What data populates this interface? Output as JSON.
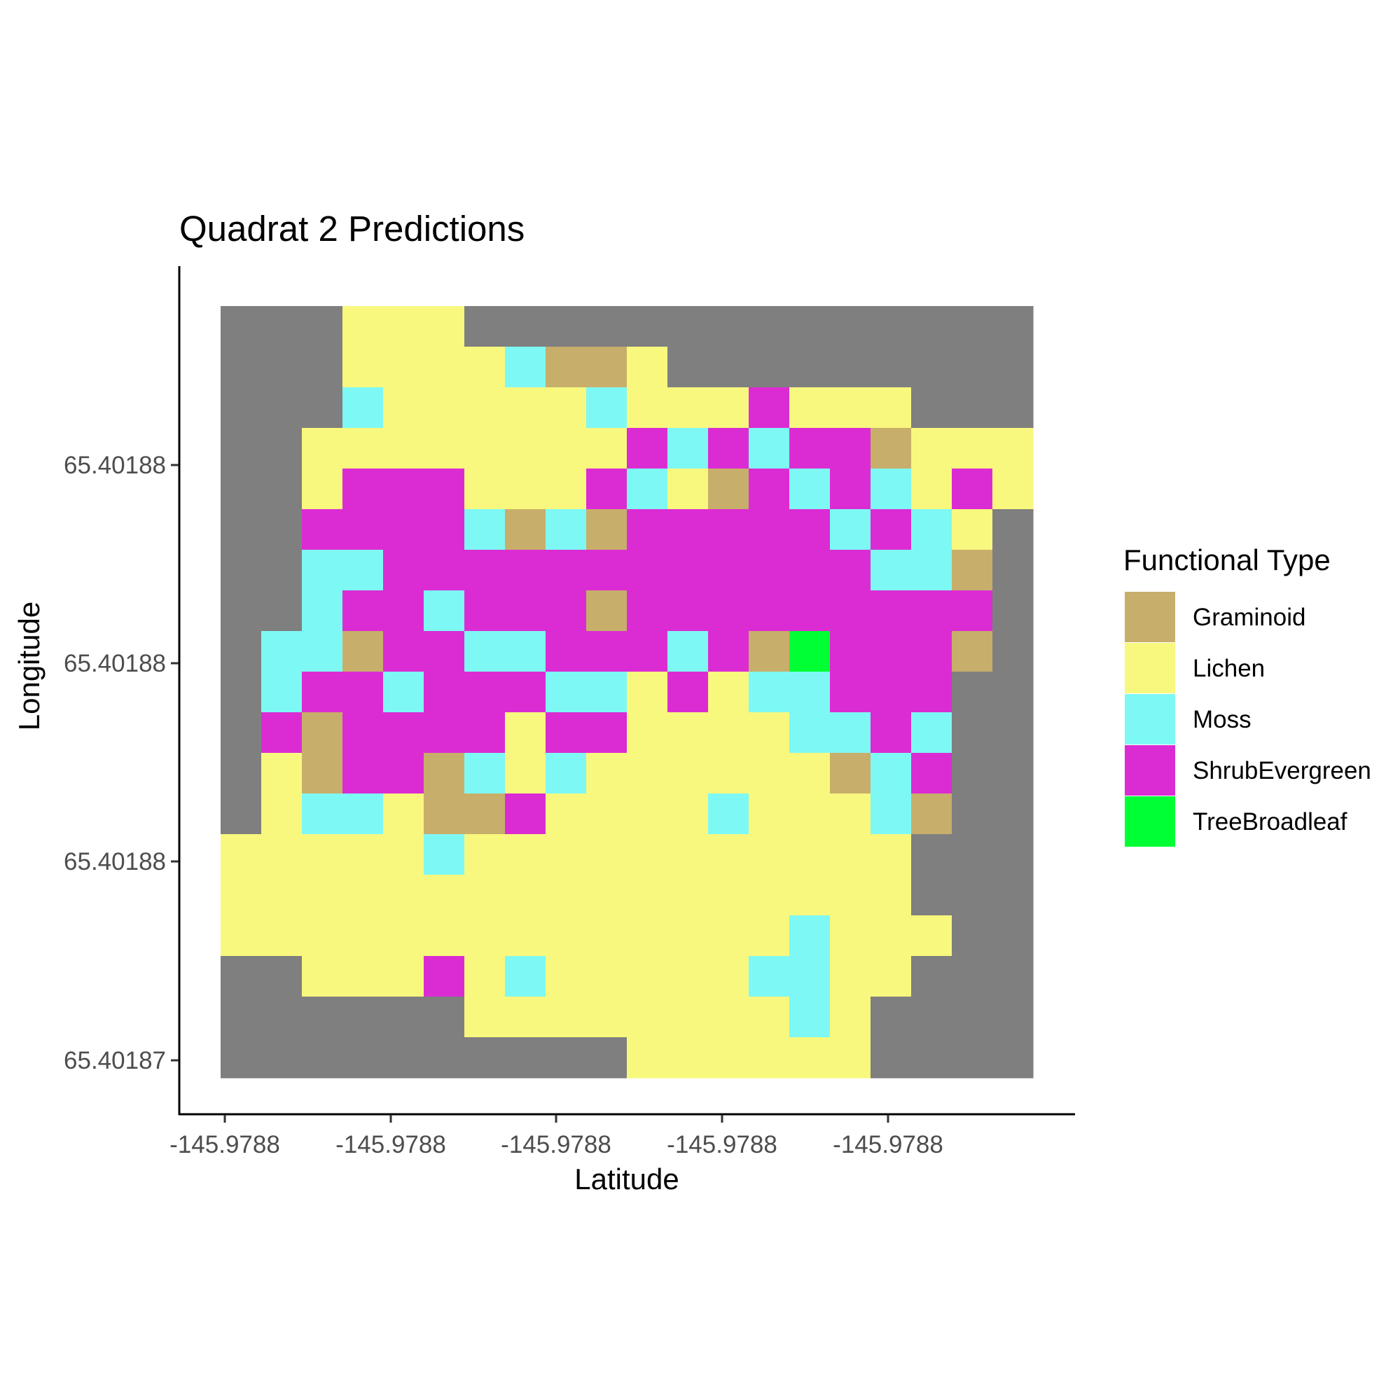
{
  "chart_data": {
    "type": "heatmap",
    "title": "Quadrat 2 Predictions",
    "xlabel": "Latitude",
    "ylabel": "Longitude",
    "x_tick_labels": [
      "-145.9788",
      "-145.9788",
      "-145.9788",
      "-145.9788",
      "-145.9788"
    ],
    "y_tick_labels": [
      "65.40188",
      "65.40188",
      "65.40188",
      "65.40187"
    ],
    "legend": {
      "title": "Functional Type",
      "position": "right",
      "entries": [
        {
          "label": "Graminoid",
          "color": "#C8AE6B"
        },
        {
          "label": "Lichen",
          "color": "#F8F87E"
        },
        {
          "label": "Moss",
          "color": "#7EF8F4"
        },
        {
          "label": "ShrubEvergreen",
          "color": "#DB2CD3"
        },
        {
          "label": "TreeBroadleaf",
          "color": "#00FF33"
        }
      ]
    },
    "na_color": "#7F7F7F",
    "cell_codes": {
      ".": "NA",
      "G": "Graminoid",
      "L": "Lichen",
      "M": "Moss",
      "S": "ShrubEvergreen",
      "T": "TreeBroadleaf"
    },
    "rows": [
      "...LLL....",
      "...LLLLMGGL........",
      "...MLLLLLMLLLSLLL...",
      "..LLLLLLLLSMSMSSGLLL",
      "..LSSSLLLSMLGSMSMLSL",
      "..SSSSMGMGSSSSSMSML.",
      "..MMSSSSSSSSSSSSMMG.",
      "..MSSMSSSGSSSSSSSSS.",
      ".MMGSSMMSSSMSGTSSSG.",
      ".MSSMSSSMMLSLMMSSS..",
      ".SGSSSSLSSLLLLMMSM..",
      ".LGSSGMLMLLLLLLGMS..",
      ".LMMLGGSLLLLMLLLMG..",
      "LLLLLMLLLLLLLLLLL...",
      "LLLLLLLLLLLLLLLLL...",
      "LLLLLLLLLLLLLLMLLL...",
      "..LLLSLMLLLLLMMLL...",
      "......LLLLLLLLML....",
      "..........LLLLLL...."
    ]
  }
}
